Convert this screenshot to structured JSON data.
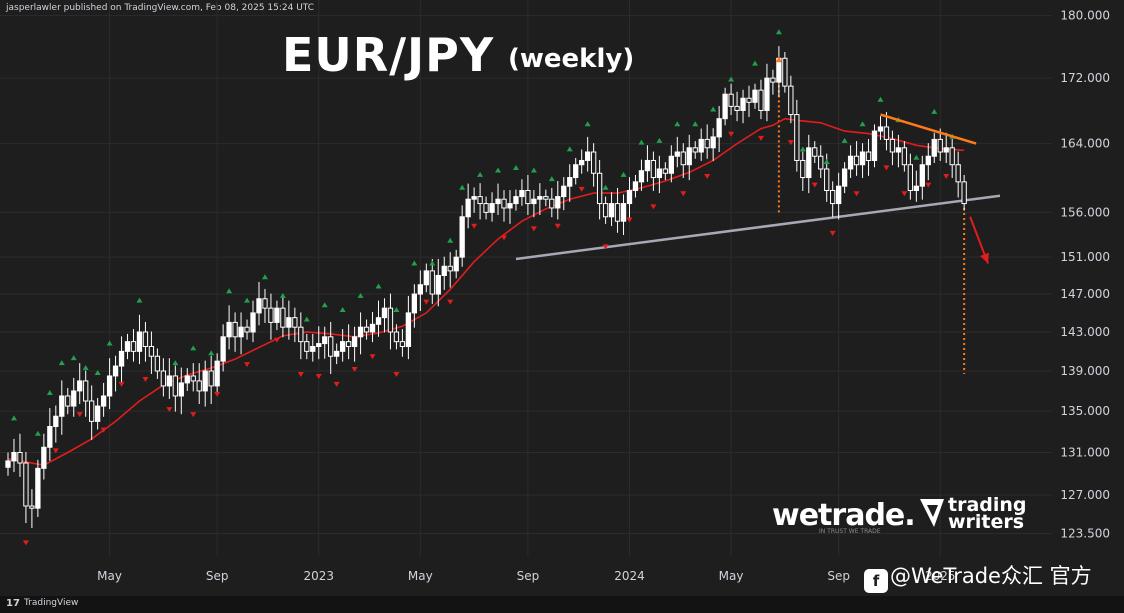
{
  "header": {
    "author": "jasperlawler",
    "published_text": "jasperlawler published on TradingView.com, Feb 08, 2025 15:24 UTC"
  },
  "footer": {
    "brand": "TradingView",
    "logo_glyph": "17"
  },
  "overlay": {
    "title": "EUR/JPY",
    "subtitle": "(weekly)",
    "wetrade_logo": "wetrade.",
    "wetrade_tagline": "IN TRUST WE TRADE",
    "tw_logo_line1": "trading",
    "tw_logo_line2": "writers",
    "watermark": "@WeTrade众汇 官方"
  },
  "colors": {
    "background": "#1e1e1e",
    "grid": "#2c2c2c",
    "candle": "#ffffff",
    "moving_average": "#e11d1d",
    "fractal_up": "#22a04b",
    "fractal_down": "#e11d1d",
    "support_line": "#a8a8b4",
    "resistance_line": "#ff7a1a",
    "projection": "#ff7a1a",
    "arrow": "#e11d1d"
  },
  "chart_data": {
    "type": "candlestick",
    "title": "EUR/JPY",
    "subtitle": "(weekly)",
    "interval": "weekly",
    "y_axis": {
      "ticks": [
        123.5,
        127.0,
        131.0,
        135.0,
        139.0,
        143.0,
        147.0,
        151.0,
        156.0,
        164.0,
        172.0,
        180.0
      ],
      "tick_labels": [
        "123.500",
        "127.000",
        "131.000",
        "135.000",
        "139.000",
        "143.000",
        "147.000",
        "151.000",
        "156.000",
        "164.000",
        "172.000",
        "180.000"
      ],
      "scale": "log",
      "range": [
        121.5,
        181.0
      ],
      "side": "right"
    },
    "x_axis": {
      "tick_labels": [
        "May",
        "Sep",
        "2023",
        "May",
        "Sep",
        "2024",
        "May",
        "Sep",
        "2025"
      ],
      "tick_weeks": [
        17,
        35,
        52,
        69,
        87,
        104,
        121,
        139,
        156
      ],
      "range_weeks": [
        0,
        166
      ]
    },
    "grid": true,
    "legend": "none",
    "candles_week_index_close": [
      [
        0,
        130.2
      ],
      [
        1,
        131.0
      ],
      [
        2,
        130.0
      ],
      [
        3,
        126.0
      ],
      [
        4,
        125.8
      ],
      [
        5,
        129.5
      ],
      [
        6,
        131.5
      ],
      [
        7,
        133.5
      ],
      [
        8,
        134.5
      ],
      [
        9,
        136.5
      ],
      [
        10,
        135.5
      ],
      [
        11,
        137.0
      ],
      [
        12,
        138.0
      ],
      [
        13,
        136.0
      ],
      [
        14,
        134.0
      ],
      [
        15,
        135.5
      ],
      [
        16,
        136.5
      ],
      [
        17,
        138.5
      ],
      [
        18,
        139.5
      ],
      [
        19,
        141.0
      ],
      [
        20,
        142.0
      ],
      [
        21,
        141.0
      ],
      [
        22,
        143.0
      ],
      [
        23,
        141.5
      ],
      [
        24,
        140.5
      ],
      [
        25,
        139.0
      ],
      [
        26,
        137.5
      ],
      [
        27,
        138.5
      ],
      [
        28,
        136.5
      ],
      [
        29,
        137.8
      ],
      [
        30,
        138.5
      ],
      [
        31,
        138.0
      ],
      [
        32,
        137.0
      ],
      [
        33,
        139.0
      ],
      [
        34,
        137.5
      ],
      [
        35,
        140.0
      ],
      [
        36,
        142.5
      ],
      [
        37,
        144.0
      ],
      [
        38,
        142.5
      ],
      [
        39,
        143.5
      ],
      [
        40,
        143.0
      ],
      [
        41,
        145.0
      ],
      [
        42,
        146.5
      ],
      [
        43,
        145.5
      ],
      [
        44,
        144.0
      ],
      [
        45,
        145.5
      ],
      [
        46,
        143.5
      ],
      [
        47,
        144.5
      ],
      [
        48,
        143.5
      ],
      [
        49,
        142.0
      ],
      [
        50,
        141.0
      ],
      [
        51,
        141.5
      ],
      [
        52,
        141.8
      ],
      [
        53,
        142.5
      ],
      [
        54,
        140.5
      ],
      [
        55,
        141.0
      ],
      [
        56,
        142.0
      ],
      [
        57,
        141.5
      ],
      [
        58,
        142.5
      ],
      [
        59,
        143.5
      ],
      [
        60,
        143.0
      ],
      [
        61,
        143.8
      ],
      [
        62,
        144.5
      ],
      [
        63,
        145.5
      ],
      [
        64,
        143.0
      ],
      [
        65,
        142.0
      ],
      [
        66,
        141.5
      ],
      [
        67,
        145.0
      ],
      [
        68,
        147.0
      ],
      [
        69,
        148.0
      ],
      [
        70,
        149.5
      ],
      [
        71,
        147.0
      ],
      [
        72,
        149.0
      ],
      [
        73,
        150.0
      ],
      [
        74,
        149.5
      ],
      [
        75,
        151.0
      ],
      [
        76,
        155.5
      ],
      [
        77,
        157.5
      ],
      [
        78,
        157.8
      ],
      [
        79,
        157.0
      ],
      [
        80,
        156.0
      ],
      [
        81,
        157.0
      ],
      [
        82,
        157.5
      ],
      [
        83,
        156.5
      ],
      [
        84,
        157.0
      ],
      [
        85,
        157.8
      ],
      [
        86,
        158.5
      ],
      [
        87,
        157.0
      ],
      [
        88,
        157.5
      ],
      [
        89,
        157.8
      ],
      [
        90,
        157.5
      ],
      [
        91,
        156.5
      ],
      [
        92,
        157.8
      ],
      [
        93,
        159.0
      ],
      [
        94,
        160.0
      ],
      [
        95,
        161.5
      ],
      [
        96,
        162.0
      ],
      [
        97,
        163.0
      ],
      [
        98,
        160.5
      ],
      [
        99,
        157.0
      ],
      [
        100,
        155.5
      ],
      [
        101,
        157.0
      ],
      [
        102,
        155.0
      ],
      [
        103,
        157.0
      ],
      [
        104,
        158.5
      ],
      [
        105,
        159.5
      ],
      [
        106,
        160.8
      ],
      [
        107,
        162.0
      ],
      [
        108,
        160.0
      ],
      [
        109,
        161.0
      ],
      [
        110,
        160.5
      ],
      [
        111,
        162.5
      ],
      [
        112,
        163.0
      ],
      [
        113,
        161.5
      ],
      [
        114,
        163.5
      ],
      [
        115,
        163.0
      ],
      [
        116,
        164.5
      ],
      [
        117,
        163.5
      ],
      [
        118,
        164.8
      ],
      [
        119,
        167.0
      ],
      [
        120,
        170.0
      ],
      [
        121,
        168.5
      ],
      [
        122,
        168.0
      ],
      [
        123,
        169.5
      ],
      [
        124,
        169.0
      ],
      [
        125,
        170.5
      ],
      [
        126,
        168.0
      ],
      [
        127,
        172.0
      ],
      [
        128,
        171.5
      ],
      [
        129,
        174.5
      ],
      [
        130,
        171.0
      ],
      [
        131,
        167.5
      ],
      [
        132,
        162.0
      ],
      [
        133,
        160.0
      ],
      [
        134,
        163.5
      ],
      [
        135,
        162.5
      ],
      [
        136,
        161.0
      ],
      [
        137,
        158.5
      ],
      [
        138,
        157.0
      ],
      [
        139,
        159.0
      ],
      [
        140,
        161.0
      ],
      [
        141,
        162.5
      ],
      [
        142,
        161.5
      ],
      [
        143,
        163.0
      ],
      [
        144,
        162.0
      ],
      [
        145,
        165.5
      ],
      [
        146,
        166.0
      ],
      [
        147,
        164.5
      ],
      [
        148,
        163.0
      ],
      [
        149,
        163.5
      ],
      [
        150,
        161.5
      ],
      [
        151,
        158.5
      ],
      [
        152,
        159.0
      ],
      [
        153,
        161.5
      ],
      [
        154,
        162.5
      ],
      [
        155,
        164.5
      ],
      [
        156,
        163.0
      ],
      [
        157,
        163.5
      ],
      [
        158,
        161.5
      ],
      [
        159,
        159.5
      ],
      [
        160,
        157.0
      ]
    ],
    "moving_average_week_close": [
      [
        0,
        130.4
      ],
      [
        6,
        129.8
      ],
      [
        10,
        131.0
      ],
      [
        14,
        132.3
      ],
      [
        18,
        134.0
      ],
      [
        22,
        136.0
      ],
      [
        26,
        137.6
      ],
      [
        30,
        138.6
      ],
      [
        34,
        139.3
      ],
      [
        38,
        140.2
      ],
      [
        42,
        141.4
      ],
      [
        46,
        142.6
      ],
      [
        50,
        143.0
      ],
      [
        54,
        142.8
      ],
      [
        58,
        142.5
      ],
      [
        62,
        142.9
      ],
      [
        66,
        143.6
      ],
      [
        70,
        145.0
      ],
      [
        74,
        147.5
      ],
      [
        78,
        150.5
      ],
      [
        82,
        153.0
      ],
      [
        86,
        155.0
      ],
      [
        90,
        156.4
      ],
      [
        94,
        157.5
      ],
      [
        98,
        158.2
      ],
      [
        102,
        158.2
      ],
      [
        106,
        158.8
      ],
      [
        110,
        159.6
      ],
      [
        114,
        160.6
      ],
      [
        118,
        162.0
      ],
      [
        122,
        164.0
      ],
      [
        126,
        165.8
      ],
      [
        128,
        166.2
      ],
      [
        130,
        167.0
      ],
      [
        132,
        166.8
      ],
      [
        136,
        166.5
      ],
      [
        140,
        165.5
      ],
      [
        144,
        165.2
      ],
      [
        148,
        164.6
      ],
      [
        152,
        163.8
      ],
      [
        156,
        163.4
      ],
      [
        160,
        163.2
      ]
    ],
    "fractals_up_week": [
      1,
      5,
      7,
      9,
      11,
      13,
      15,
      17,
      22,
      28,
      31,
      34,
      37,
      40,
      43,
      46,
      50,
      53,
      56,
      59,
      62,
      65,
      68,
      71,
      74,
      76,
      79,
      82,
      85,
      88,
      91,
      94,
      97,
      100,
      103,
      106,
      109,
      112,
      115,
      118,
      121,
      125,
      129,
      133,
      137,
      140,
      143,
      146,
      149,
      152,
      155,
      158
    ],
    "fractals_down_week": [
      3,
      8,
      12,
      16,
      19,
      23,
      27,
      31,
      35,
      40,
      45,
      49,
      52,
      55,
      58,
      61,
      65,
      70,
      74,
      78,
      83,
      88,
      92,
      96,
      100,
      104,
      108,
      113,
      117,
      121,
      126,
      131,
      135,
      138,
      142,
      147,
      150,
      154,
      157
    ],
    "annotations": [
      {
        "type": "support_line",
        "from": [
          85,
          150.8
        ],
        "to": [
          166,
          157.9
        ]
      },
      {
        "type": "resistance_line",
        "from": [
          146,
          167.5
        ],
        "to": [
          162,
          164.0
        ]
      },
      {
        "type": "projection_up",
        "week": 129,
        "from": 156.0,
        "to": 174.5
      },
      {
        "type": "projection_down",
        "week": 160,
        "from": 156.5,
        "to": 138.7
      },
      {
        "type": "arrow",
        "from": [
          161,
          155.5
        ],
        "to": [
          164,
          150.3
        ]
      }
    ]
  }
}
